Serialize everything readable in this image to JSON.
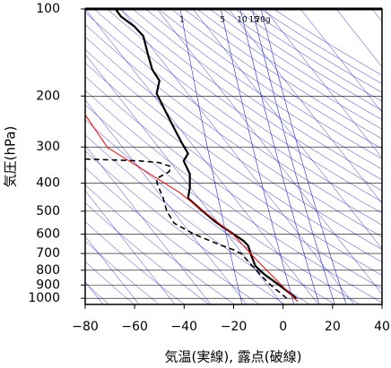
{
  "chart_data": {
    "type": "line",
    "x_label": "気温(実線), 露点(破線)",
    "y_label": "気圧(hPa)",
    "xlim": [
      -80,
      40
    ],
    "xticks": [
      {
        "value": -80,
        "label": "−80"
      },
      {
        "value": -60,
        "label": "−60"
      },
      {
        "value": -40,
        "label": "−40"
      },
      {
        "value": -20,
        "label": "−20"
      },
      0,
      20,
      40
    ],
    "ylim": [
      1050,
      100
    ],
    "yscale": "log",
    "yticks": [
      100,
      200,
      300,
      400,
      500,
      600,
      700,
      800,
      900,
      1000
    ],
    "grid": true,
    "mixing_ratio": [
      1,
      5,
      10,
      15,
      {
        "value": 20,
        "label": "20g"
      }
    ],
    "series": [
      {
        "color": "#000000",
        "style": "solid",
        "pressure": [
          1000,
          892,
          831,
          774,
          706,
          658,
          634,
          543,
          495,
          451,
          414,
          372,
          335,
          316,
          291,
          261,
          226,
          196,
          177,
          162,
          143,
          124,
          115,
          106,
          101,
          100
        ],
        "temperature": [
          5.4,
          -2.2,
          -7.2,
          -11.2,
          -13,
          -14.1,
          -15.9,
          -27.5,
          -33,
          -38.4,
          -37.7,
          -37.7,
          -40.2,
          -38.4,
          -40.9,
          -43.8,
          -47.5,
          -51.1,
          -50,
          -52.9,
          -54.7,
          -56.5,
          -60.1,
          -65.6,
          -67.4,
          -66.3
        ]
      },
      {
        "color": "#000000",
        "style": "dashed",
        "pressure": [
          1000,
          960,
          900,
          850,
          780,
          700,
          680,
          646,
          600,
          550,
          500,
          450,
          400,
          385,
          365,
          350,
          340,
          335,
          330
        ],
        "temperature": [
          1.5,
          -1,
          -5,
          -8,
          -12,
          -17,
          -20,
          -27,
          -36,
          -44,
          -47,
          -48.5,
          -51,
          -51,
          -46,
          -45.5,
          -50,
          -58,
          -80
        ]
      },
      {
        "color": "#ff0000",
        "style": "solid",
        "pressure": [
          1028,
          730,
          600,
          430,
          301,
          234
        ],
        "temperature": [
          6,
          -11.2,
          -20.3,
          -42,
          -71,
          -79.7
        ]
      }
    ]
  }
}
